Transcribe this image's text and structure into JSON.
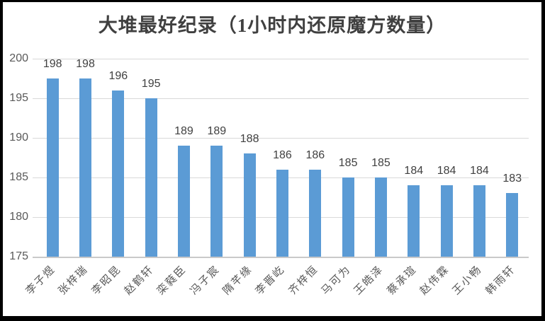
{
  "chart_data": {
    "type": "bar",
    "title": "大堆最好纪录（1小时内还原魔方数量）",
    "categories": [
      "李子煜",
      "张梓瑞",
      "李昭昆",
      "赵鹤轩",
      "栾蕤臣",
      "冯子宸",
      "隋芊缘",
      "李晋屹",
      "齐梓恒",
      "马可为",
      "王皓泽",
      "蔡承瑄",
      "赵伟霖",
      "王小畅",
      "韩雨轩"
    ],
    "values": [
      198,
      198,
      196,
      195,
      189,
      189,
      188,
      186,
      186,
      185,
      185,
      184,
      184,
      184,
      183
    ],
    "xlabel": "",
    "ylabel": "",
    "ylim": [
      175,
      200
    ],
    "yticks": [
      175,
      180,
      185,
      190,
      195,
      200
    ],
    "grid": true,
    "legend": false,
    "data_labels": true
  },
  "colors": {
    "bar": "#5B9BD5",
    "gridline": "#D9D9D9",
    "axis_line": "#C9C9C9",
    "tick_text": "#595959",
    "value_text": "#404040",
    "title_text": "#404040",
    "background": "#FFFFFF",
    "frame_border": "#000000"
  }
}
